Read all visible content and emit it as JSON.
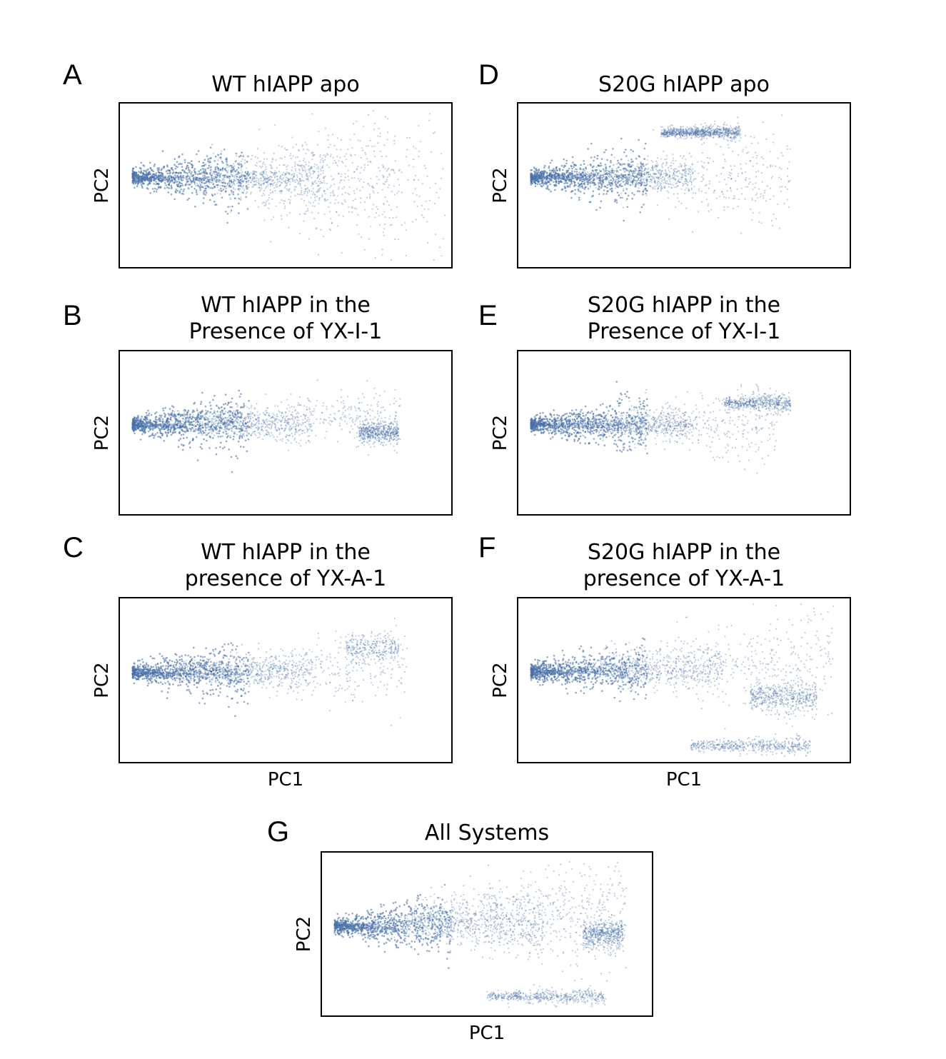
{
  "colors": {
    "points": "#4a72a8",
    "frame": "#000000",
    "background": "#ffffff"
  },
  "chart_data": [
    {
      "type": "scatter",
      "letter": "A",
      "title_lines": [
        "WT hIAPP apo"
      ],
      "xlabel": "",
      "ylabel": "PC2",
      "x_ticks": [],
      "y_ticks": [],
      "grid": false,
      "clusters": [
        {
          "center": [
            0.32,
            0.54
          ],
          "spread": [
            0.3,
            0.2
          ],
          "density": "high"
        },
        {
          "center": [
            0.55,
            0.55
          ],
          "spread": [
            0.3,
            0.45
          ],
          "density": "medium"
        },
        {
          "center": [
            0.72,
            0.48
          ],
          "spread": [
            0.3,
            0.5
          ],
          "density": "low"
        }
      ]
    },
    {
      "type": "scatter",
      "letter": "B",
      "title_lines": [
        "WT hIAPP in the",
        "Presence of YX-I-1"
      ],
      "xlabel": "",
      "ylabel": "PC2",
      "x_ticks": [],
      "y_ticks": [],
      "grid": false,
      "clusters": [
        {
          "center": [
            0.3,
            0.54
          ],
          "spread": [
            0.28,
            0.2
          ],
          "density": "high"
        },
        {
          "center": [
            0.5,
            0.6
          ],
          "spread": [
            0.35,
            0.2
          ],
          "density": "medium"
        },
        {
          "center": [
            0.78,
            0.5
          ],
          "spread": [
            0.06,
            0.08
          ],
          "density": "medium"
        }
      ]
    },
    {
      "type": "scatter",
      "letter": "C",
      "title_lines": [
        "WT hIAPP in the",
        "presence of YX-A-1"
      ],
      "xlabel": "PC1",
      "ylabel": "PC2",
      "x_ticks": [],
      "y_ticks": [],
      "grid": false,
      "clusters": [
        {
          "center": [
            0.3,
            0.54
          ],
          "spread": [
            0.28,
            0.2
          ],
          "density": "high"
        },
        {
          "center": [
            0.52,
            0.58
          ],
          "spread": [
            0.35,
            0.28
          ],
          "density": "medium"
        },
        {
          "center": [
            0.76,
            0.7
          ],
          "spread": [
            0.08,
            0.1
          ],
          "density": "low"
        }
      ]
    },
    {
      "type": "scatter",
      "letter": "D",
      "title_lines": [
        "S20G hIAPP apo"
      ],
      "xlabel": "",
      "ylabel": "PC2",
      "x_ticks": [],
      "y_ticks": [],
      "grid": false,
      "clusters": [
        {
          "center": [
            0.28,
            0.55
          ],
          "spread": [
            0.25,
            0.2
          ],
          "density": "high"
        },
        {
          "center": [
            0.5,
            0.55
          ],
          "spread": [
            0.32,
            0.38
          ],
          "density": "medium"
        },
        {
          "center": [
            0.55,
            0.82
          ],
          "spread": [
            0.12,
            0.06
          ],
          "density": "high"
        }
      ]
    },
    {
      "type": "scatter",
      "letter": "E",
      "title_lines": [
        "S20G hIAPP in the",
        "Presence of YX-I-1"
      ],
      "xlabel": "",
      "ylabel": "PC2",
      "x_ticks": [],
      "y_ticks": [],
      "grid": false,
      "clusters": [
        {
          "center": [
            0.28,
            0.55
          ],
          "spread": [
            0.25,
            0.18
          ],
          "density": "high"
        },
        {
          "center": [
            0.48,
            0.55
          ],
          "spread": [
            0.3,
            0.35
          ],
          "density": "medium"
        },
        {
          "center": [
            0.72,
            0.68
          ],
          "spread": [
            0.1,
            0.06
          ],
          "density": "medium"
        }
      ]
    },
    {
      "type": "scatter",
      "letter": "F",
      "title_lines": [
        "S20G hIAPP in the",
        "presence of YX-A-1"
      ],
      "xlabel": "PC1",
      "ylabel": "PC2",
      "x_ticks": [],
      "y_ticks": [],
      "grid": false,
      "clusters": [
        {
          "center": [
            0.32,
            0.55
          ],
          "spread": [
            0.3,
            0.22
          ],
          "density": "high"
        },
        {
          "center": [
            0.6,
            0.62
          ],
          "spread": [
            0.35,
            0.35
          ],
          "density": "medium"
        },
        {
          "center": [
            0.8,
            0.4
          ],
          "spread": [
            0.1,
            0.12
          ],
          "density": "medium"
        },
        {
          "center": [
            0.7,
            0.1
          ],
          "spread": [
            0.18,
            0.06
          ],
          "density": "medium"
        }
      ]
    },
    {
      "type": "scatter",
      "letter": "G",
      "title_lines": [
        "All Systems"
      ],
      "xlabel": "PC1",
      "ylabel": "PC2",
      "x_ticks": [],
      "y_ticks": [],
      "grid": false,
      "clusters": [
        {
          "center": [
            0.35,
            0.55
          ],
          "spread": [
            0.32,
            0.3
          ],
          "density": "very high"
        },
        {
          "center": [
            0.6,
            0.62
          ],
          "spread": [
            0.32,
            0.38
          ],
          "density": "high"
        },
        {
          "center": [
            0.85,
            0.5
          ],
          "spread": [
            0.06,
            0.1
          ],
          "density": "medium"
        },
        {
          "center": [
            0.68,
            0.12
          ],
          "spread": [
            0.18,
            0.06
          ],
          "density": "medium"
        }
      ]
    }
  ]
}
